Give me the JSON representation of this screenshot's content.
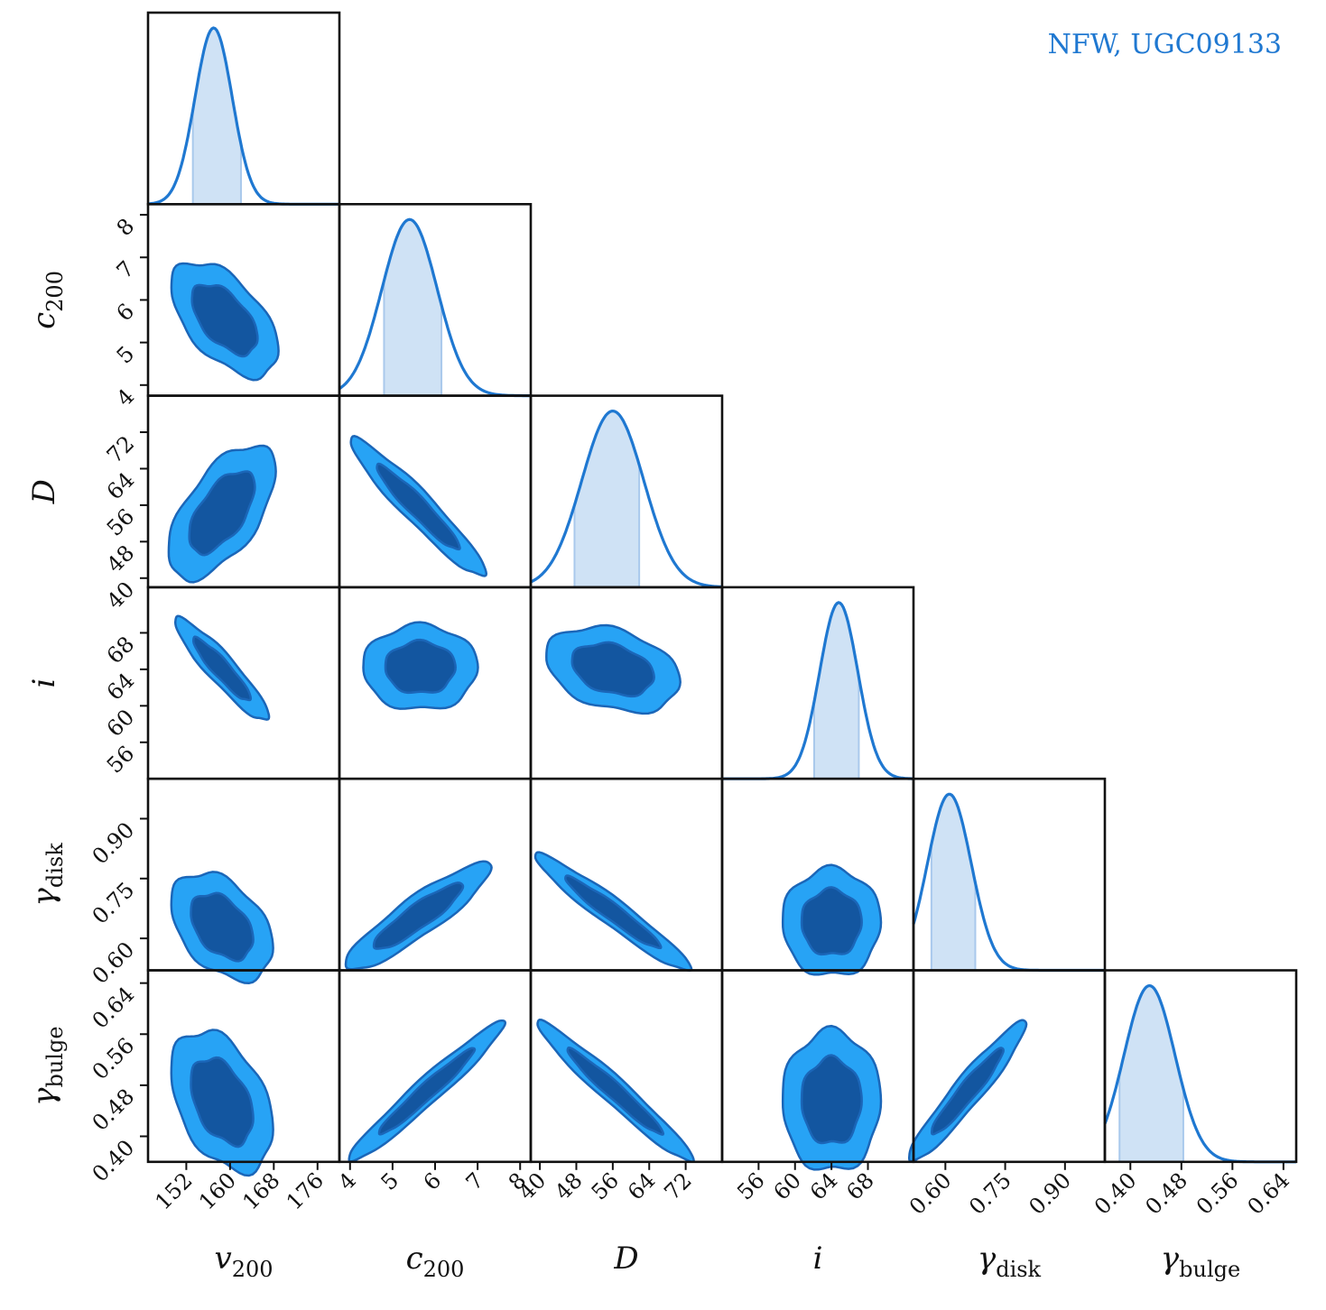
{
  "title": "NFW, UGC09133",
  "colors": {
    "accent": "#1f78d1",
    "inner_contour": "#1356a0",
    "outer_contour": "#27a3f5",
    "contour_edge": "#1b66b8",
    "interval_fill": "#cfe2f5",
    "frame": "#111111"
  },
  "chart_data": {
    "type": "corner",
    "parameters": [
      {
        "key": "v200",
        "base": "v",
        "sub": "200",
        "range": [
          145,
          180
        ],
        "ticks": [
          152,
          160,
          168,
          176
        ],
        "tick_labels": [
          "152",
          "160",
          "168",
          "176"
        ],
        "mode": 157,
        "sigma": 3.4,
        "interval": [
          153.2,
          162.0
        ]
      },
      {
        "key": "c200",
        "base": "c",
        "sub": "200",
        "range": [
          3.75,
          8.25
        ],
        "ticks": [
          4,
          5,
          6,
          7,
          8
        ],
        "tick_labels": [
          "4",
          "5",
          "6",
          "7",
          "8"
        ],
        "mode": 5.4,
        "sigma": 0.65,
        "interval": [
          4.8,
          6.15
        ]
      },
      {
        "key": "D",
        "base": "D",
        "sub": "",
        "range": [
          38,
          80
        ],
        "ticks": [
          40,
          48,
          56,
          64,
          72
        ],
        "tick_labels": [
          "40",
          "48",
          "56",
          "64",
          "72"
        ],
        "mode": 56,
        "sigma": 6.8,
        "interval": [
          47.6,
          61.8
        ]
      },
      {
        "key": "i",
        "base": "i",
        "sub": "",
        "range": [
          52,
          73
        ],
        "ticks": [
          56,
          60,
          64,
          68
        ],
        "tick_labels": [
          "56",
          "60",
          "64",
          "68"
        ],
        "mode": 64.8,
        "sigma": 2.1,
        "interval": [
          62.1,
          67.0
        ]
      },
      {
        "key": "gamma_disk",
        "base": "γ",
        "sub": "disk",
        "range": [
          0.52,
          1.0
        ],
        "ticks": [
          0.6,
          0.75,
          0.9
        ],
        "tick_labels": [
          "0.60",
          "0.75",
          "0.90"
        ],
        "mode": 0.61,
        "sigma": 0.055,
        "interval": [
          0.565,
          0.675
        ]
      },
      {
        "key": "gamma_bulge",
        "base": "γ",
        "sub": "bulge",
        "range": [
          0.36,
          0.66
        ],
        "ticks": [
          0.4,
          0.48,
          0.56,
          0.64
        ],
        "tick_labels": [
          "0.40",
          "0.48",
          "0.56",
          "0.64"
        ],
        "mode": 0.43,
        "sigma": 0.04,
        "interval": [
          0.383,
          0.483
        ]
      }
    ],
    "contours": [
      {
        "x": "v200",
        "y": "c200",
        "center": [
          159,
          5.55
        ],
        "spread": [
          4.0,
          0.55
        ],
        "rho": -0.55
      },
      {
        "x": "v200",
        "y": "D",
        "center": [
          158.5,
          54.5
        ],
        "spread": [
          4.0,
          6.0
        ],
        "rho": 0.6
      },
      {
        "x": "c200",
        "y": "D",
        "center": [
          5.6,
          55.5
        ],
        "spread": [
          0.65,
          6.2
        ],
        "rho": -0.95
      },
      {
        "x": "v200",
        "y": "i",
        "center": [
          158.5,
          64.0
        ],
        "spread": [
          3.5,
          2.3
        ],
        "rho": -0.92
      },
      {
        "x": "c200",
        "y": "i",
        "center": [
          5.65,
          64.2
        ],
        "spread": [
          0.55,
          1.9
        ],
        "rho": 0.0
      },
      {
        "x": "D",
        "y": "i",
        "center": [
          56.0,
          64.0
        ],
        "spread": [
          6.0,
          1.9
        ],
        "rho": -0.3
      },
      {
        "x": "v200",
        "y": "gamma_disk",
        "center": [
          158.5,
          0.63
        ],
        "spread": [
          3.8,
          0.055
        ],
        "rho": -0.4
      },
      {
        "x": "c200",
        "y": "gamma_disk",
        "center": [
          5.6,
          0.655
        ],
        "spread": [
          0.7,
          0.055
        ],
        "rho": 0.9
      },
      {
        "x": "D",
        "y": "gamma_disk",
        "center": [
          56.0,
          0.665
        ],
        "spread": [
          7.0,
          0.06
        ],
        "rho": -0.96
      },
      {
        "x": "i",
        "y": "gamma_disk",
        "center": [
          64.0,
          0.64
        ],
        "spread": [
          2.2,
          0.055
        ],
        "rho": 0.0
      },
      {
        "x": "v200",
        "y": "gamma_bulge",
        "center": [
          158.5,
          0.455
        ],
        "spread": [
          3.8,
          0.045
        ],
        "rho": -0.4
      },
      {
        "x": "c200",
        "y": "gamma_bulge",
        "center": [
          5.8,
          0.47
        ],
        "spread": [
          0.75,
          0.045
        ],
        "rho": 0.97
      },
      {
        "x": "D",
        "y": "gamma_bulge",
        "center": [
          56.5,
          0.47
        ],
        "spread": [
          7.0,
          0.045
        ],
        "rho": -0.97
      },
      {
        "x": "i",
        "y": "gamma_bulge",
        "center": [
          64.0,
          0.455
        ],
        "spread": [
          2.2,
          0.045
        ],
        "rho": 0.0
      },
      {
        "x": "gamma_disk",
        "y": "gamma_bulge",
        "center": [
          0.655,
          0.47
        ],
        "spread": [
          0.06,
          0.045
        ],
        "rho": 0.95
      }
    ]
  }
}
